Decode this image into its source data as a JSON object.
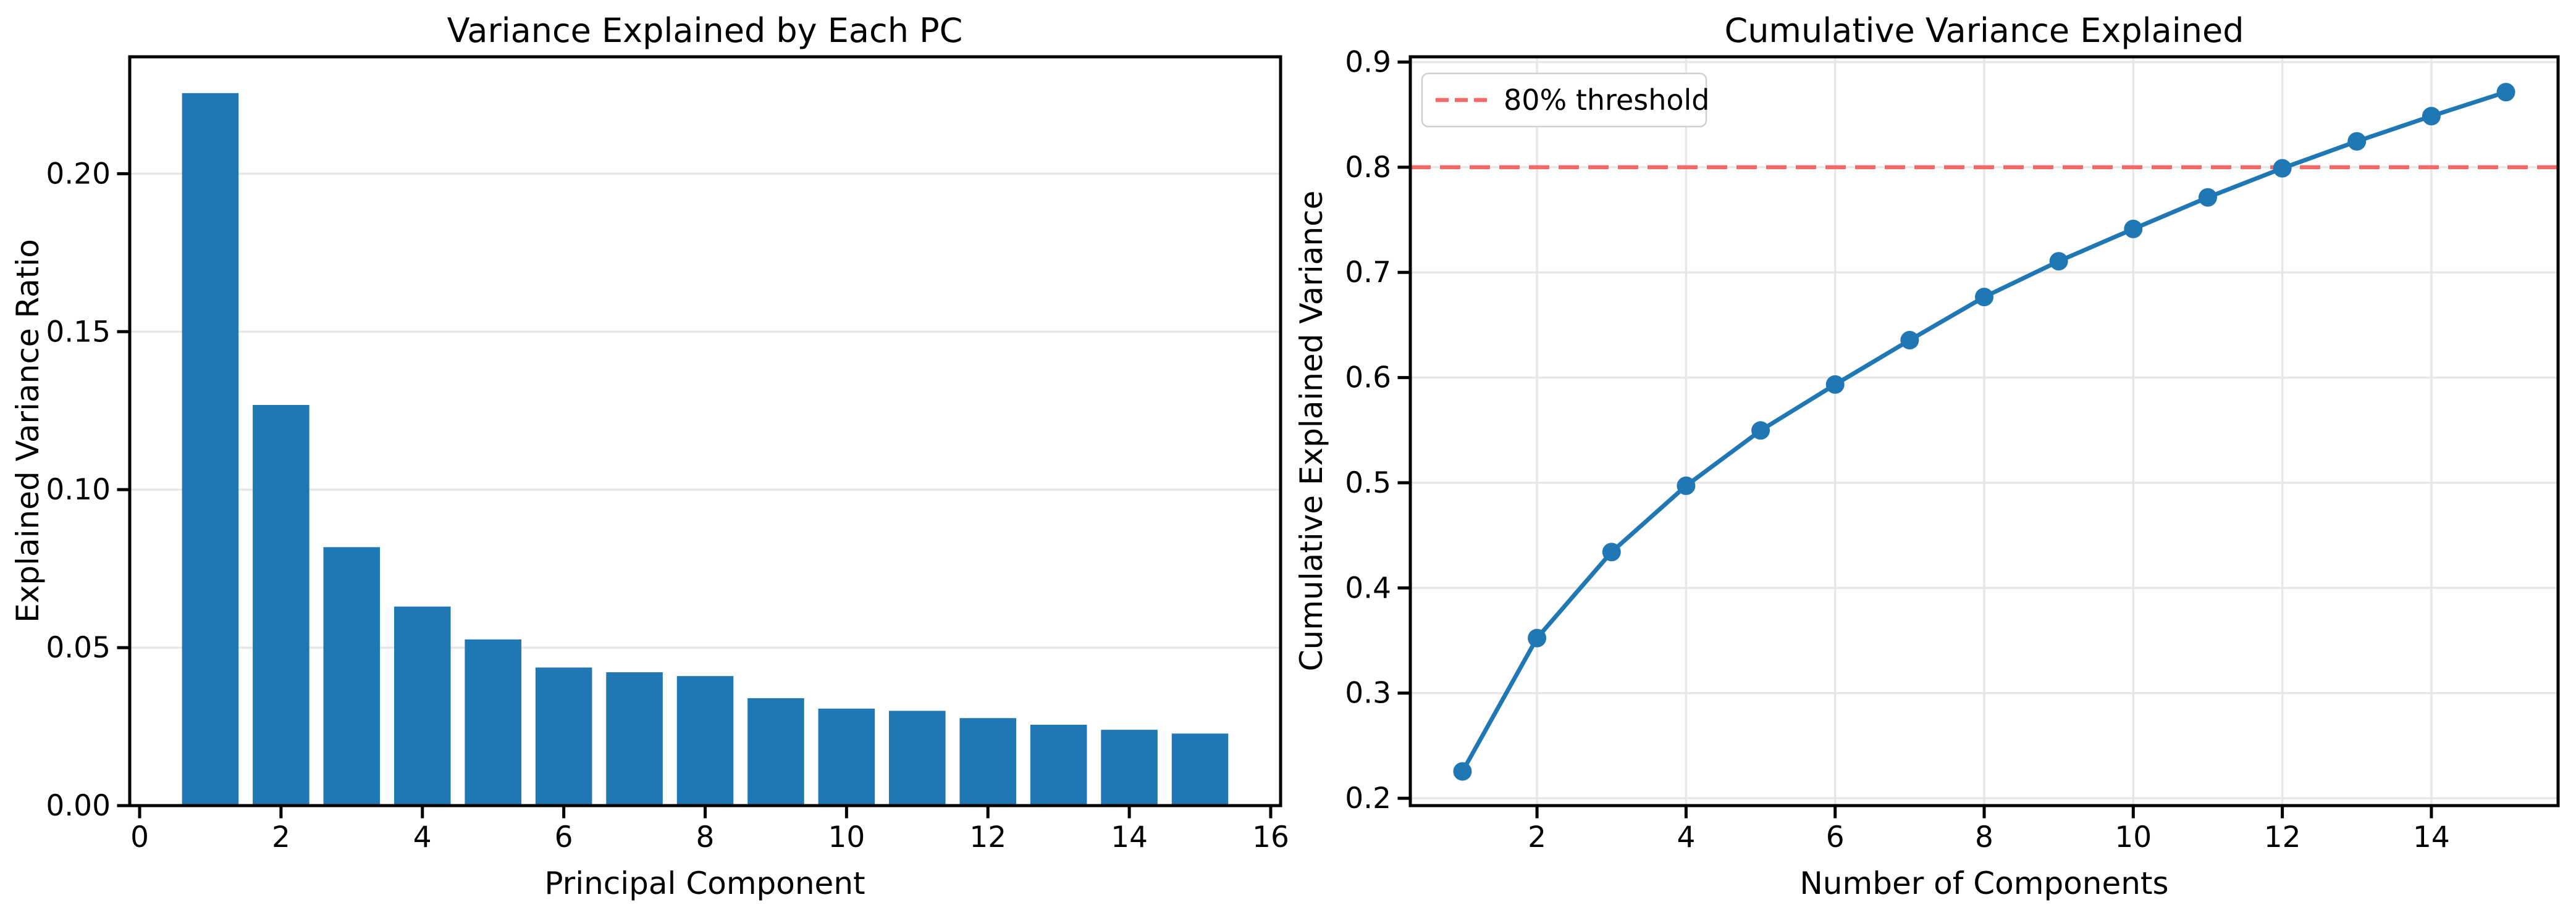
{
  "figure": {
    "background": "#ffffff"
  },
  "colors": {
    "bar_blue": "#1f77b4",
    "line_blue": "#1f77b4",
    "threshold_red": "#f56969",
    "grid_gray": "#e7e7e7",
    "spine_black": "#000000",
    "legend_border": "#d0d0d0",
    "legend_bg": "#ffffff"
  },
  "chart_data": [
    {
      "id": "scree",
      "type": "bar",
      "title": "Variance Explained by Each PC",
      "xlabel": "Principal Component",
      "ylabel": "Explained Variance Ratio",
      "categories": [
        1,
        2,
        3,
        4,
        5,
        6,
        7,
        8,
        9,
        10,
        11,
        12,
        13,
        14,
        15
      ],
      "values": [
        0.2255,
        0.1268,
        0.0818,
        0.063,
        0.0526,
        0.0437,
        0.0422,
        0.041,
        0.034,
        0.0307,
        0.03,
        0.0277,
        0.0256,
        0.024,
        0.0228
      ],
      "bar_width": 0.8,
      "xlim": [
        -0.14,
        16.14
      ],
      "ylim": [
        0,
        0.237
      ],
      "x_ticks": [
        0,
        2,
        4,
        6,
        8,
        10,
        12,
        14,
        16
      ],
      "x_tick_labels": [
        "0",
        "2",
        "4",
        "6",
        "8",
        "10",
        "12",
        "14",
        "16"
      ],
      "y_ticks": [
        0.0,
        0.05,
        0.1,
        0.15,
        0.2
      ],
      "y_tick_labels": [
        "0.00",
        "0.05",
        "0.10",
        "0.15",
        "0.20"
      ],
      "grid": "y",
      "legend": null
    },
    {
      "id": "cumulative",
      "type": "line",
      "title": "Cumulative Variance Explained",
      "xlabel": "Number of Components",
      "ylabel": "Cumulative Explained Variance",
      "x": [
        1,
        2,
        3,
        4,
        5,
        6,
        7,
        8,
        9,
        10,
        11,
        12,
        13,
        14,
        15
      ],
      "y": [
        0.2255,
        0.3523,
        0.4341,
        0.4971,
        0.5497,
        0.5934,
        0.6356,
        0.6766,
        0.7106,
        0.7413,
        0.7713,
        0.799,
        0.8246,
        0.8486,
        0.8714
      ],
      "marker": "circle",
      "xlim": [
        0.3,
        15.7
      ],
      "ylim": [
        0.193,
        0.905
      ],
      "x_ticks": [
        2,
        4,
        6,
        8,
        10,
        12,
        14
      ],
      "x_tick_labels": [
        "2",
        "4",
        "6",
        "8",
        "10",
        "12",
        "14"
      ],
      "y_ticks": [
        0.2,
        0.3,
        0.4,
        0.5,
        0.6,
        0.7,
        0.8,
        0.9
      ],
      "y_tick_labels": [
        "0.2",
        "0.3",
        "0.4",
        "0.5",
        "0.6",
        "0.7",
        "0.8",
        "0.9"
      ],
      "grid": "both",
      "threshold": {
        "value": 0.8,
        "label": "80% threshold"
      },
      "legend": {
        "label": "80% threshold",
        "position": "upper-left"
      }
    }
  ]
}
